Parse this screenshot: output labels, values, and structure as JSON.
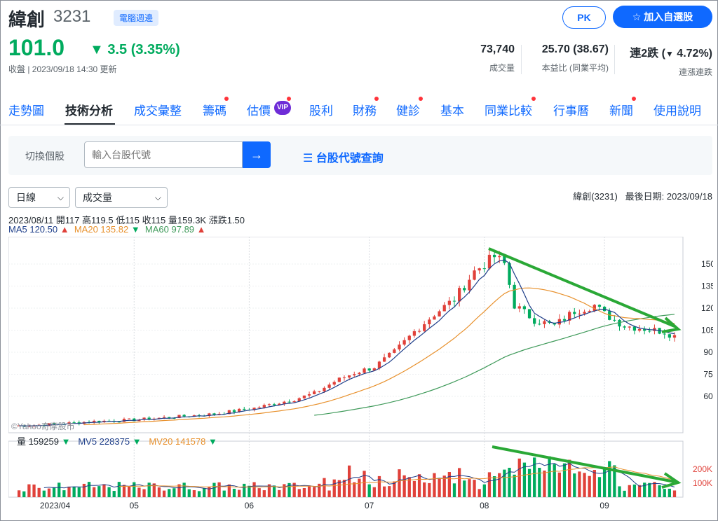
{
  "stock": {
    "name": "緯創",
    "code": "3231",
    "tag": "電腦週邊"
  },
  "quote": {
    "price": "101.0",
    "change": "3.5 (3.35%)",
    "status": "收盤 | 2023/09/18 14:30 更新"
  },
  "buttons": {
    "pk": "PK",
    "add": "加入自選股",
    "add_icon": "star-outline-icon"
  },
  "stats": [
    {
      "value": "73,740",
      "label": "成交量"
    },
    {
      "value": "25.70 (38.67)",
      "label": "本益比 (同業平均)"
    },
    {
      "value_prefix": "連2跌 (",
      "value_arrow": "▼",
      "value_main": "4.72%)",
      "label": "連漲連跌"
    }
  ],
  "nav": [
    "走勢圖",
    "技術分析",
    "成交彙整",
    "籌碼",
    "估價",
    "股利",
    "財務",
    "健診",
    "基本",
    "同業比較",
    "行事曆",
    "新聞",
    "使用說明"
  ],
  "nav_badge": "VIP",
  "switcher": {
    "label": "切換個股",
    "placeholder": "輸入台股代號",
    "lookup": "台股代號查詢"
  },
  "selectors": {
    "period": "日線",
    "indicator": "成交量"
  },
  "info": {
    "symbol": "緯創(3231)",
    "last_date_label": "最後日期:",
    "last_date": "2023/09/18"
  },
  "ohlc_line": "2023/08/11 開117 高119.5 低115 收115 量159.3K 漲跌1.50",
  "ma": {
    "ma5": "MA5 120.50",
    "ma20": "MA20 135.82",
    "ma60": "MA60 97.89"
  },
  "vol_legend": {
    "vol": "量 159259",
    "mv5": "MV5 228375",
    "mv20": "MV20 141578"
  },
  "watermark": "©Yahoo奇摩股市",
  "colors": {
    "up": "#e0413a",
    "down": "#00ab5e",
    "ma5": "#1f3f8a",
    "ma20": "#e8912d",
    "ma60": "#3f9a5a",
    "annotation_arrow": "#e0413a",
    "trend": "#2aa836",
    "accent": "#0f69ff"
  },
  "chart_data": {
    "type": "candlestick",
    "x_ticks": [
      "2023/04",
      "05",
      "06",
      "07",
      "08",
      "09"
    ],
    "y_ticks": [
      60,
      75,
      90,
      105,
      120,
      135,
      150
    ],
    "ylim": [
      40,
      160
    ],
    "volume_ticks": [
      "100K",
      "200K"
    ],
    "close_series": [
      [
        0,
        40
      ],
      [
        8,
        41
      ],
      [
        16,
        43
      ],
      [
        24,
        44
      ],
      [
        32,
        46
      ],
      [
        40,
        48
      ],
      [
        48,
        52
      ],
      [
        56,
        58
      ],
      [
        60,
        62
      ],
      [
        64,
        70
      ],
      [
        68,
        76
      ],
      [
        72,
        80
      ],
      [
        76,
        90
      ],
      [
        80,
        104
      ],
      [
        84,
        116
      ],
      [
        88,
        126
      ],
      [
        92,
        145
      ],
      [
        96,
        155
      ],
      [
        98,
        150
      ],
      [
        100,
        122
      ],
      [
        104,
        112
      ],
      [
        108,
        108
      ],
      [
        112,
        118
      ],
      [
        116,
        122
      ],
      [
        118,
        116
      ],
      [
        122,
        108
      ],
      [
        126,
        106
      ],
      [
        130,
        104
      ],
      [
        132,
        101
      ]
    ],
    "trend_annotations": [
      "downtrend on price",
      "downtrend on volume"
    ],
    "marker": "down arrow at 2023/08 peak"
  }
}
